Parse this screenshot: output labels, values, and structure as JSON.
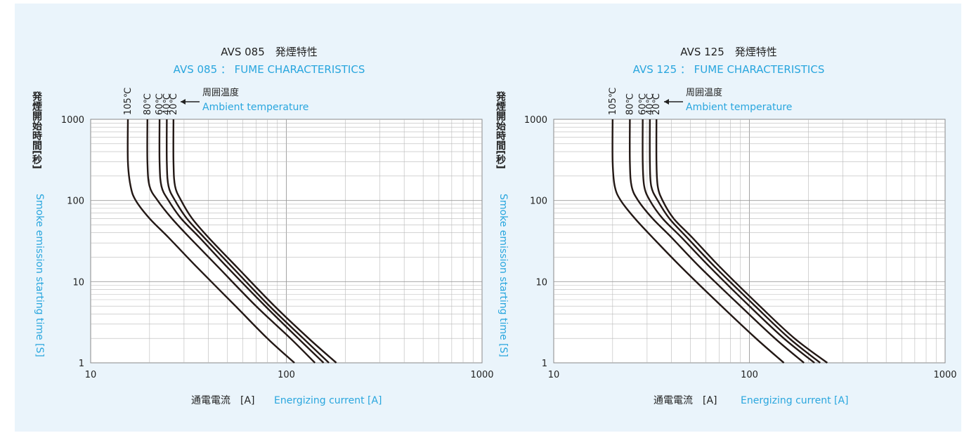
{
  "charts": [
    {
      "title_jp": "AVS 085　発煙特性",
      "title_en": "AVS 085 ： FUME CHARACTERISTICS"
    },
    {
      "title_jp": "AVS 125　発煙特性",
      "title_en": "AVS 125 ： FUME CHARACTERISTICS"
    }
  ],
  "shared": {
    "ylabel_jp": "発煙開始時間[秒]",
    "ylabel_en": "Smoke emission starting time [S]",
    "xlabel_jp": "通電電流　[A]",
    "xlabel_en": "Energizing current [A]",
    "annotation_jp": "周囲温度",
    "annotation_en": "Ambient temperature",
    "x_tick_labels": [
      "10",
      "100",
      "1000"
    ],
    "y_tick_labels": [
      "1",
      "10",
      "100",
      "1000"
    ]
  },
  "colors": {
    "background": "#eaf4fb",
    "accent": "#29a6de",
    "curve": "#231815"
  },
  "chart_data": [
    {
      "type": "line",
      "title": "AVS 085 ： FUME CHARACTERISTICS",
      "xlabel": "Energizing current [A]",
      "ylabel": "Smoke emission starting time [S]",
      "xscale": "log",
      "yscale": "log",
      "xlim": [
        10,
        1000
      ],
      "ylim": [
        1,
        1000
      ],
      "grid": true,
      "series": [
        {
          "name": "105℃",
          "x": [
            15.5,
            15.5,
            16,
            17,
            20,
            25,
            35,
            55,
            80,
            110
          ],
          "y": [
            1000,
            300,
            150,
            100,
            60,
            35,
            15,
            5,
            2,
            1
          ]
        },
        {
          "name": "80℃",
          "x": [
            19.5,
            19.5,
            20,
            22,
            26,
            32,
            45,
            70,
            105,
            140
          ],
          "y": [
            1000,
            300,
            150,
            100,
            60,
            35,
            15,
            5,
            2,
            1
          ]
        },
        {
          "name": "60℃",
          "x": [
            22.5,
            22.5,
            23,
            25,
            29,
            36,
            50,
            78,
            115,
            155
          ],
          "y": [
            1000,
            300,
            150,
            100,
            60,
            35,
            15,
            5,
            2,
            1
          ]
        },
        {
          "name": "40℃",
          "x": [
            24.5,
            24.5,
            25,
            27,
            31,
            38,
            53,
            82,
            122,
            165
          ],
          "y": [
            1000,
            300,
            150,
            100,
            60,
            35,
            15,
            5,
            2,
            1
          ]
        },
        {
          "name": "20℃",
          "x": [
            26.5,
            26.5,
            27,
            29,
            33,
            40,
            56,
            87,
            130,
            180
          ],
          "y": [
            1000,
            300,
            150,
            100,
            60,
            35,
            15,
            5,
            2,
            1
          ]
        }
      ]
    },
    {
      "type": "line",
      "title": "AVS 125 ： FUME CHARACTERISTICS",
      "xlabel": "Energizing current [A]",
      "ylabel": "Smoke emission starting time [S]",
      "xscale": "log",
      "yscale": "log",
      "xlim": [
        10,
        1000
      ],
      "ylim": [
        1,
        1000
      ],
      "grid": true,
      "series": [
        {
          "name": "105℃",
          "x": [
            20,
            20,
            20.5,
            22,
            26,
            32,
            45,
            72,
            108,
            150
          ],
          "y": [
            1000,
            300,
            150,
            100,
            60,
            35,
            15,
            5,
            2,
            1
          ]
        },
        {
          "name": "80℃",
          "x": [
            24.5,
            24.5,
            25,
            27,
            32,
            40,
            56,
            90,
            135,
            190
          ],
          "y": [
            1000,
            300,
            150,
            100,
            60,
            35,
            15,
            5,
            2,
            1
          ]
        },
        {
          "name": "60℃",
          "x": [
            28.5,
            28.5,
            29,
            31,
            36,
            45,
            63,
            100,
            150,
            215
          ],
          "y": [
            1000,
            300,
            150,
            100,
            60,
            35,
            15,
            5,
            2,
            1
          ]
        },
        {
          "name": "40℃",
          "x": [
            31,
            31,
            31.5,
            34,
            39,
            48,
            67,
            107,
            160,
            230
          ],
          "y": [
            1000,
            300,
            150,
            100,
            60,
            35,
            15,
            5,
            2,
            1
          ]
        },
        {
          "name": "20℃",
          "x": [
            33.5,
            33.5,
            34,
            36,
            41,
            51,
            71,
            113,
            170,
            250
          ],
          "y": [
            1000,
            300,
            150,
            100,
            60,
            35,
            15,
            5,
            2,
            1
          ]
        }
      ]
    }
  ]
}
